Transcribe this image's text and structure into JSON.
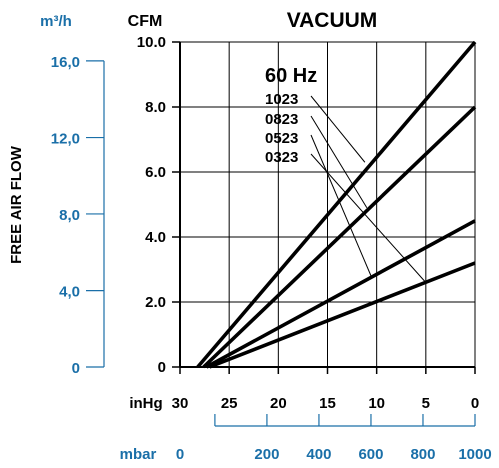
{
  "chart_data": {
    "type": "line",
    "title": "VACUUM",
    "frequency_label": "60 Hz",
    "y_axis_left": {
      "unit_label": "m³/h",
      "label": "FREE AIR FLOW",
      "ticks": [
        {
          "label": "16,0",
          "cfm": 9.42
        },
        {
          "label": "12,0",
          "cfm": 7.06
        },
        {
          "label": "8,0",
          "cfm": 4.71
        },
        {
          "label": "4,0",
          "cfm": 2.35
        },
        {
          "label": "0",
          "cfm": 0
        }
      ],
      "color": "#1a6fa8"
    },
    "y_axis_right": {
      "unit_label": "CFM",
      "ylim": [
        0,
        10
      ],
      "ticks": [
        "10.0",
        "8.0",
        "6.0",
        "4.0",
        "2.0",
        "0"
      ],
      "tick_values": [
        10,
        8,
        6,
        4,
        2,
        0
      ]
    },
    "x_axis_inhg": {
      "unit_label": "inHg",
      "xlim": [
        30,
        0
      ],
      "ticks": [
        "30",
        "25",
        "20",
        "15",
        "10",
        "5",
        "0"
      ],
      "tick_values": [
        30,
        25,
        20,
        15,
        10,
        5,
        0
      ]
    },
    "x_axis_mbar": {
      "unit_label": "mbar",
      "ticks": [
        {
          "label": "0",
          "inhg": 26.45
        },
        {
          "label": "200",
          "inhg": 21.16
        },
        {
          "label": "400",
          "inhg": 15.87
        },
        {
          "label": "600",
          "inhg": 10.58
        },
        {
          "label": "800",
          "inhg": 5.29
        },
        {
          "label": "1000",
          "inhg": 0
        }
      ],
      "color": "#1a6fa8"
    },
    "series": [
      {
        "name": "1023",
        "x": [
          28.2,
          0
        ],
        "y": [
          0,
          10.0
        ],
        "label_anchor": [
          11.2,
          6.3
        ]
      },
      {
        "name": "0823",
        "x": [
          27.6,
          0
        ],
        "y": [
          0,
          8.0
        ],
        "label_anchor": [
          11.0,
          4.9
        ]
      },
      {
        "name": "0523",
        "x": [
          27.3,
          0
        ],
        "y": [
          0,
          4.5
        ],
        "label_anchor": [
          10.5,
          2.75
        ]
      },
      {
        "name": "0323",
        "x": [
          27.0,
          0
        ],
        "y": [
          0,
          3.2
        ],
        "label_anchor": [
          5.0,
          2.6
        ]
      }
    ]
  }
}
